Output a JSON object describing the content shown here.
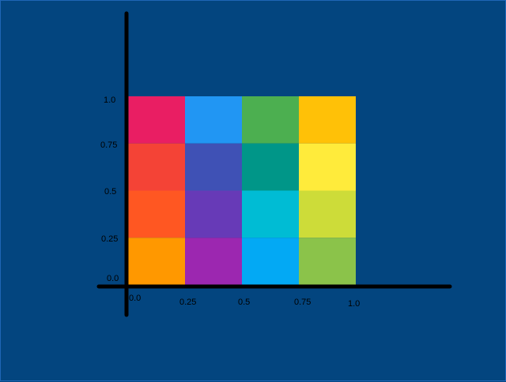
{
  "chart_data": {
    "type": "heatmap",
    "title": "",
    "xlabel": "",
    "ylabel": "",
    "xlim": [
      0,
      1
    ],
    "ylim": [
      0,
      1
    ],
    "grid": false,
    "legend": "none",
    "x_ticks": [
      "0.0",
      "0.25",
      "0.5",
      "0.75",
      "1.0"
    ],
    "y_ticks": [
      "0.0",
      "0.25",
      "0.5",
      "0.75",
      "1.0"
    ],
    "columns": [
      {
        "x_start": 0.0,
        "x_end": 0.25,
        "cells": [
          {
            "y_start": 0.75,
            "y_end": 1.0,
            "color": "#e91e63"
          },
          {
            "y_start": 0.5,
            "y_end": 0.75,
            "color": "#f44336"
          },
          {
            "y_start": 0.25,
            "y_end": 0.5,
            "color": "#ff5722"
          },
          {
            "y_start": 0.0,
            "y_end": 0.25,
            "color": "#ff9800"
          }
        ]
      },
      {
        "x_start": 0.25,
        "x_end": 0.5,
        "cells": [
          {
            "y_start": 0.75,
            "y_end": 1.0,
            "color": "#2196f3"
          },
          {
            "y_start": 0.5,
            "y_end": 0.75,
            "color": "#3f51b5"
          },
          {
            "y_start": 0.25,
            "y_end": 0.5,
            "color": "#673ab7"
          },
          {
            "y_start": 0.0,
            "y_end": 0.25,
            "color": "#9c27b0"
          }
        ]
      },
      {
        "x_start": 0.5,
        "x_end": 0.75,
        "cells": [
          {
            "y_start": 0.75,
            "y_end": 1.0,
            "color": "#4caf50"
          },
          {
            "y_start": 0.5,
            "y_end": 0.75,
            "color": "#009688"
          },
          {
            "y_start": 0.25,
            "y_end": 0.5,
            "color": "#00bcd4"
          },
          {
            "y_start": 0.0,
            "y_end": 0.25,
            "color": "#03a9f4"
          }
        ]
      },
      {
        "x_start": 0.75,
        "x_end": 1.0,
        "cells": [
          {
            "y_start": 0.75,
            "y_end": 1.0,
            "color": "#ffc107"
          },
          {
            "y_start": 0.5,
            "y_end": 0.75,
            "color": "#ffeb3b"
          },
          {
            "y_start": 0.25,
            "y_end": 0.5,
            "color": "#cddc39"
          },
          {
            "y_start": 0.0,
            "y_end": 0.25,
            "color": "#8bc34a"
          }
        ]
      }
    ]
  },
  "colors": {
    "background": "#03457f",
    "frame": "#1f66b6",
    "axis": "#000000"
  }
}
